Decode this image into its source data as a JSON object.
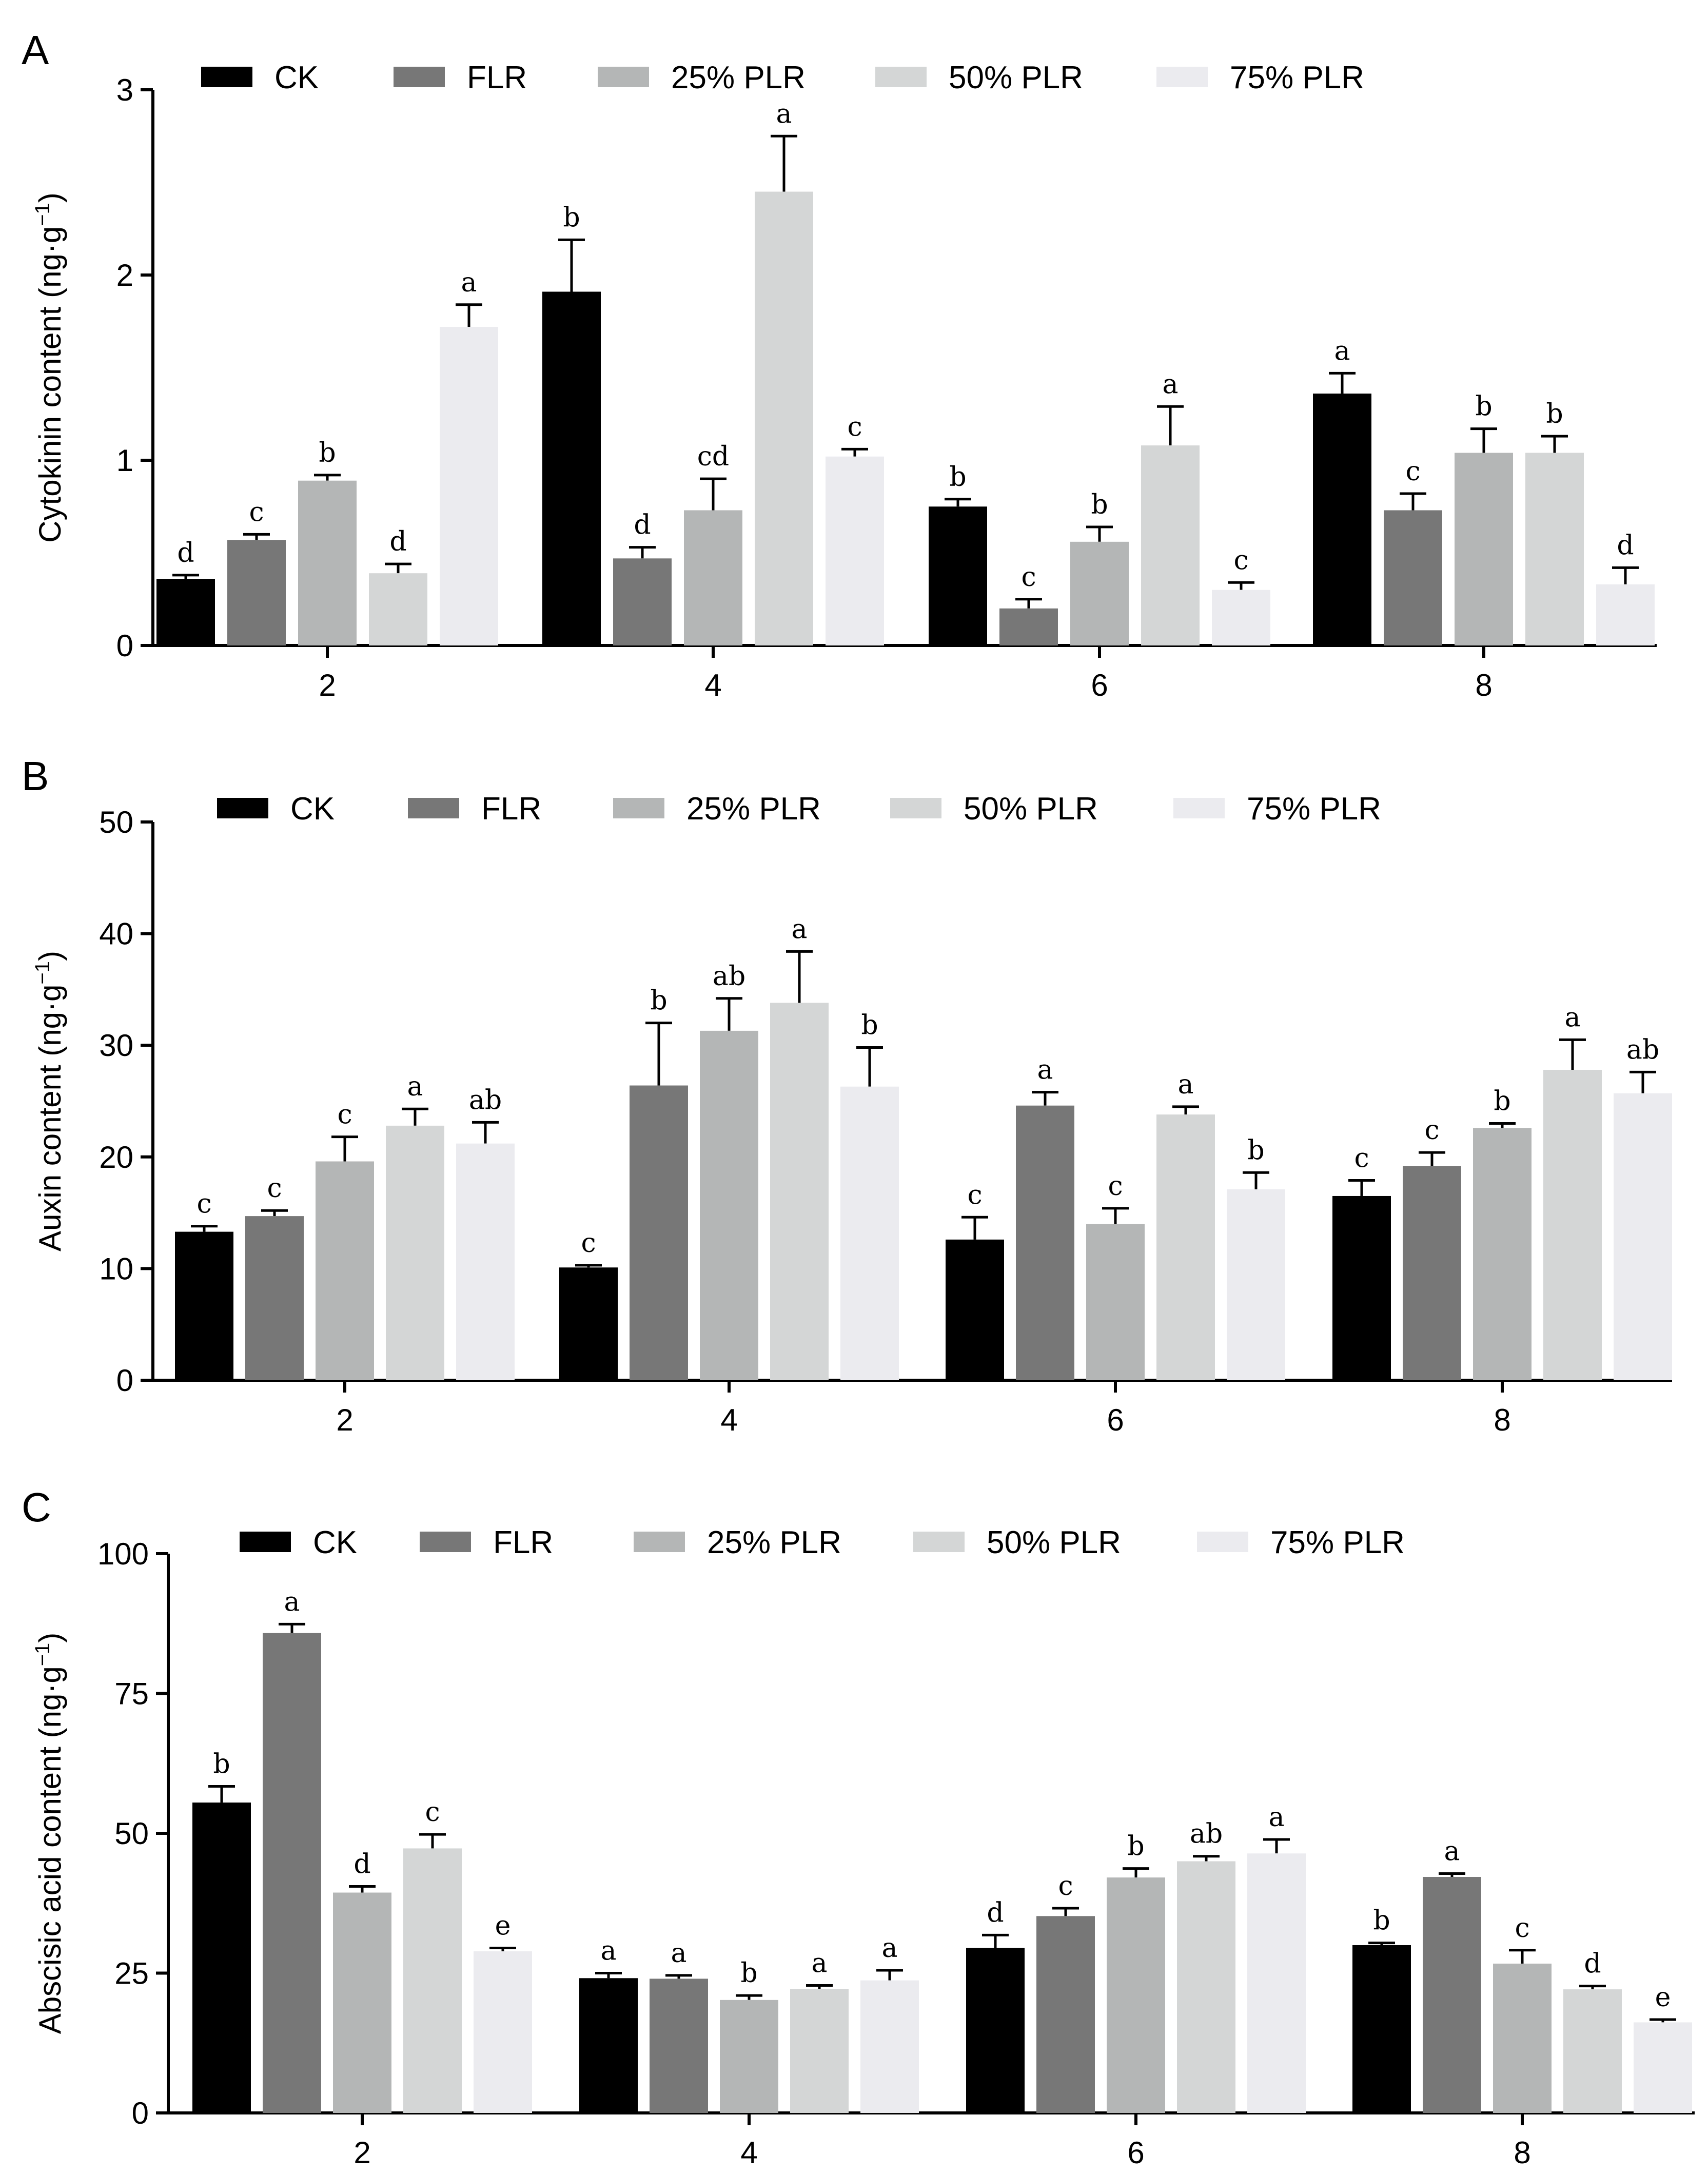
{
  "colors": {
    "CK": "#000000",
    "FLR": "#777777",
    "25% PLR": "#b4b6b6",
    "50% PLR": "#d4d6d6",
    "75% PLR": "#ebebef"
  },
  "chart_data": [
    {
      "panel": "A",
      "type": "bar",
      "ylabel_base": "Cytokinin content (ng·g",
      "ylabel_sup": "−1",
      "ylabel_end": ")",
      "xlabel": "",
      "categories": [
        "2",
        "4",
        "6",
        "8"
      ],
      "ylim": [
        0,
        3
      ],
      "yticks": [
        "0",
        "1",
        "2",
        "3"
      ],
      "legend_position": "top",
      "series": [
        {
          "name": "CK",
          "values": [
            0.36,
            1.91,
            0.75,
            1.36
          ],
          "errors": [
            0.02,
            0.28,
            0.04,
            0.11
          ],
          "labels": [
            "d",
            "b",
            "b",
            "a"
          ]
        },
        {
          "name": "FLR",
          "values": [
            0.57,
            0.47,
            0.2,
            0.73
          ],
          "errors": [
            0.03,
            0.06,
            0.05,
            0.09
          ],
          "labels": [
            "c",
            "d",
            "c",
            "c"
          ]
        },
        {
          "name": "25% PLR",
          "values": [
            0.89,
            0.73,
            0.56,
            1.04
          ],
          "errors": [
            0.03,
            0.17,
            0.08,
            0.13
          ],
          "labels": [
            "b",
            "cd",
            "b",
            "b"
          ]
        },
        {
          "name": "50% PLR",
          "values": [
            0.39,
            2.45,
            1.08,
            1.04
          ],
          "errors": [
            0.05,
            0.3,
            0.21,
            0.09
          ],
          "labels": [
            "d",
            "a",
            "a",
            "b"
          ]
        },
        {
          "name": "75% PLR",
          "values": [
            1.72,
            1.02,
            0.3,
            0.33
          ],
          "errors": [
            0.12,
            0.04,
            0.04,
            0.09
          ],
          "labels": [
            "a",
            "c",
            "c",
            "d"
          ]
        }
      ]
    },
    {
      "panel": "B",
      "type": "bar",
      "ylabel_base": "Auxin content (ng·g",
      "ylabel_sup": "−1",
      "ylabel_end": ")",
      "xlabel": "",
      "categories": [
        "2",
        "4",
        "6",
        "8"
      ],
      "ylim": [
        0,
        50
      ],
      "yticks": [
        "0",
        "10",
        "20",
        "30",
        "40",
        "50"
      ],
      "legend_position": "top",
      "series": [
        {
          "name": "CK",
          "values": [
            13.3,
            10.1,
            12.6,
            16.5
          ],
          "errors": [
            0.5,
            0.2,
            2.0,
            1.4
          ],
          "labels": [
            "c",
            "c",
            "c",
            "c"
          ]
        },
        {
          "name": "FLR",
          "values": [
            14.7,
            26.4,
            24.6,
            19.2
          ],
          "errors": [
            0.5,
            5.6,
            1.2,
            1.2
          ],
          "labels": [
            "c",
            "b",
            "a",
            "c"
          ]
        },
        {
          "name": "25% PLR",
          "values": [
            19.6,
            31.3,
            14.0,
            22.6
          ],
          "errors": [
            2.2,
            2.9,
            1.4,
            0.4
          ],
          "labels": [
            "c",
            "ab",
            "c",
            "b"
          ]
        },
        {
          "name": "50% PLR",
          "values": [
            22.8,
            33.8,
            23.8,
            27.8
          ],
          "errors": [
            1.5,
            4.6,
            0.7,
            2.7
          ],
          "labels": [
            "a",
            "a",
            "a",
            "a"
          ]
        },
        {
          "name": "75% PLR",
          "values": [
            21.2,
            26.3,
            17.1,
            25.7
          ],
          "errors": [
            1.9,
            3.5,
            1.5,
            1.9
          ],
          "labels": [
            "ab",
            "b",
            "b",
            "ab"
          ]
        }
      ]
    },
    {
      "panel": "C",
      "type": "bar",
      "ylabel_base": "Abscisic acid content (ng·g",
      "ylabel_sup": "−1",
      "ylabel_end": ")",
      "xlabel": "",
      "categories": [
        "2",
        "4",
        "6",
        "8"
      ],
      "ylim": [
        0,
        100
      ],
      "yticks": [
        "0",
        "25",
        "50",
        "75",
        "100"
      ],
      "legend_position": "top",
      "series": [
        {
          "name": "CK",
          "values": [
            55.5,
            24.1,
            29.5,
            30.0
          ],
          "errors": [
            2.9,
            0.9,
            2.3,
            0.4
          ],
          "labels": [
            "b",
            "a",
            "d",
            "b"
          ]
        },
        {
          "name": "FLR",
          "values": [
            85.8,
            24.0,
            35.2,
            42.2
          ],
          "errors": [
            1.6,
            0.6,
            1.4,
            0.6
          ],
          "labels": [
            "a",
            "a",
            "c",
            "a"
          ]
        },
        {
          "name": "25% PLR",
          "values": [
            39.4,
            20.2,
            42.1,
            26.7
          ],
          "errors": [
            1.1,
            0.8,
            1.6,
            2.4
          ],
          "labels": [
            "d",
            "b",
            "b",
            "c"
          ]
        },
        {
          "name": "50% PLR",
          "values": [
            47.3,
            22.2,
            45.0,
            22.1
          ],
          "errors": [
            2.5,
            0.6,
            0.9,
            0.6
          ],
          "labels": [
            "c",
            "a",
            "ab",
            "d"
          ]
        },
        {
          "name": "75% PLR",
          "values": [
            28.9,
            23.7,
            46.4,
            16.2
          ],
          "errors": [
            0.6,
            1.8,
            2.5,
            0.5
          ],
          "labels": [
            "e",
            "a",
            "a",
            "e"
          ]
        }
      ]
    }
  ]
}
